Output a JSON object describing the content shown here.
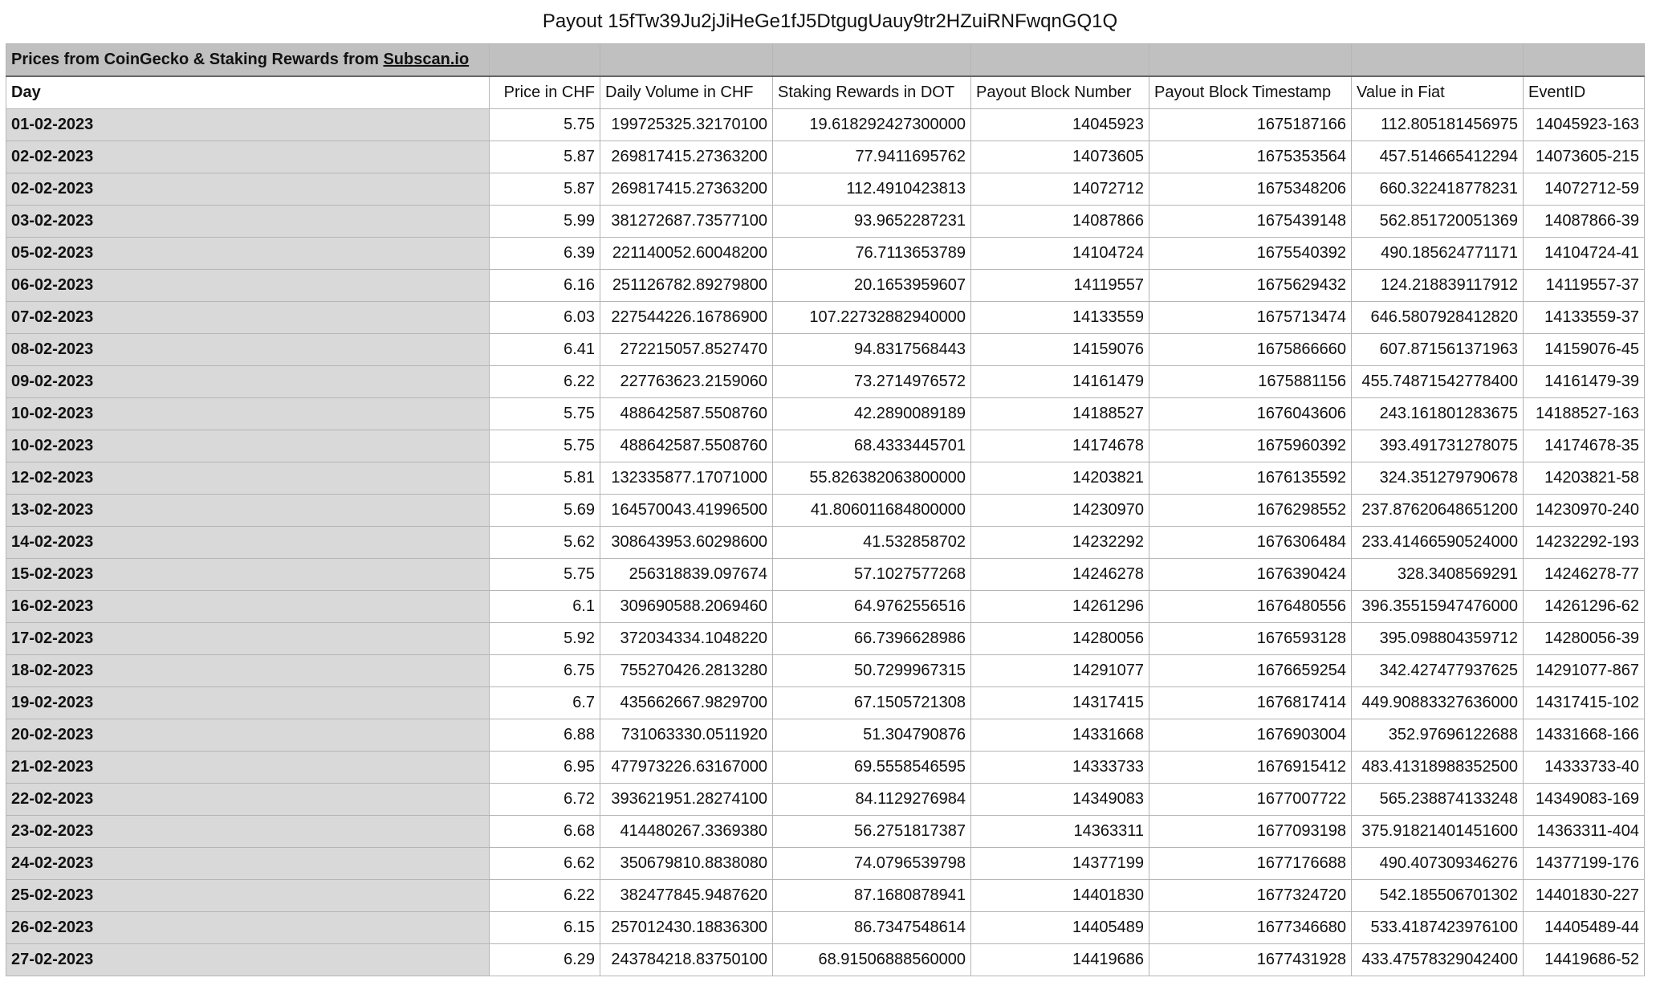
{
  "title": "Payout 15fTw39Ju2jJiHeGe1fJ5DtgugUauy9tr2HZuiRNFwqnGQ1Q",
  "source": {
    "prefix": "Prices from CoinGecko & Staking Rewards from ",
    "link": "Subscan.io"
  },
  "columns": [
    "Day",
    "Price in CHF",
    "Daily Volume in CHF",
    "Staking Rewards in DOT",
    "Payout Block Number",
    "Payout Block Timestamp",
    "Value in Fiat",
    "EventID"
  ],
  "rows": [
    [
      "01-02-2023",
      "5.75",
      "199725325.32170100",
      "19.618292427300000",
      "14045923",
      "1675187166",
      "112.805181456975",
      "14045923-163"
    ],
    [
      "02-02-2023",
      "5.87",
      "269817415.27363200",
      "77.9411695762",
      "14073605",
      "1675353564",
      "457.514665412294",
      "14073605-215"
    ],
    [
      "02-02-2023",
      "5.87",
      "269817415.27363200",
      "112.4910423813",
      "14072712",
      "1675348206",
      "660.322418778231",
      "14072712-59"
    ],
    [
      "03-02-2023",
      "5.99",
      "381272687.73577100",
      "93.9652287231",
      "14087866",
      "1675439148",
      "562.851720051369",
      "14087866-39"
    ],
    [
      "05-02-2023",
      "6.39",
      "221140052.60048200",
      "76.7113653789",
      "14104724",
      "1675540392",
      "490.185624771171",
      "14104724-41"
    ],
    [
      "06-02-2023",
      "6.16",
      "251126782.89279800",
      "20.1653959607",
      "14119557",
      "1675629432",
      "124.218839117912",
      "14119557-37"
    ],
    [
      "07-02-2023",
      "6.03",
      "227544226.16786900",
      "107.22732882940000",
      "14133559",
      "1675713474",
      "646.5807928412820",
      "14133559-37"
    ],
    [
      "08-02-2023",
      "6.41",
      "272215057.8527470",
      "94.8317568443",
      "14159076",
      "1675866660",
      "607.871561371963",
      "14159076-45"
    ],
    [
      "09-02-2023",
      "6.22",
      "227763623.2159060",
      "73.2714976572",
      "14161479",
      "1675881156",
      "455.74871542778400",
      "14161479-39"
    ],
    [
      "10-02-2023",
      "5.75",
      "488642587.5508760",
      "42.2890089189",
      "14188527",
      "1676043606",
      "243.161801283675",
      "14188527-163"
    ],
    [
      "10-02-2023",
      "5.75",
      "488642587.5508760",
      "68.4333445701",
      "14174678",
      "1675960392",
      "393.491731278075",
      "14174678-35"
    ],
    [
      "12-02-2023",
      "5.81",
      "132335877.17071000",
      "55.826382063800000",
      "14203821",
      "1676135592",
      "324.351279790678",
      "14203821-58"
    ],
    [
      "13-02-2023",
      "5.69",
      "164570043.41996500",
      "41.806011684800000",
      "14230970",
      "1676298552",
      "237.87620648651200",
      "14230970-240"
    ],
    [
      "14-02-2023",
      "5.62",
      "308643953.60298600",
      "41.532858702",
      "14232292",
      "1676306484",
      "233.41466590524000",
      "14232292-193"
    ],
    [
      "15-02-2023",
      "5.75",
      "256318839.097674",
      "57.1027577268",
      "14246278",
      "1676390424",
      "328.3408569291",
      "14246278-77"
    ],
    [
      "16-02-2023",
      "6.1",
      "309690588.2069460",
      "64.9762556516",
      "14261296",
      "1676480556",
      "396.35515947476000",
      "14261296-62"
    ],
    [
      "17-02-2023",
      "5.92",
      "372034334.1048220",
      "66.7396628986",
      "14280056",
      "1676593128",
      "395.098804359712",
      "14280056-39"
    ],
    [
      "18-02-2023",
      "6.75",
      "755270426.2813280",
      "50.7299967315",
      "14291077",
      "1676659254",
      "342.427477937625",
      "14291077-867"
    ],
    [
      "19-02-2023",
      "6.7",
      "435662667.9829700",
      "67.1505721308",
      "14317415",
      "1676817414",
      "449.90883327636000",
      "14317415-102"
    ],
    [
      "20-02-2023",
      "6.88",
      "731063330.0511920",
      "51.304790876",
      "14331668",
      "1676903004",
      "352.97696122688",
      "14331668-166"
    ],
    [
      "21-02-2023",
      "6.95",
      "477973226.63167000",
      "69.5558546595",
      "14333733",
      "1676915412",
      "483.41318988352500",
      "14333733-40"
    ],
    [
      "22-02-2023",
      "6.72",
      "393621951.28274100",
      "84.1129276984",
      "14349083",
      "1677007722",
      "565.238874133248",
      "14349083-169"
    ],
    [
      "23-02-2023",
      "6.68",
      "414480267.3369380",
      "56.2751817387",
      "14363311",
      "1677093198",
      "375.91821401451600",
      "14363311-404"
    ],
    [
      "24-02-2023",
      "6.62",
      "350679810.8838080",
      "74.0796539798",
      "14377199",
      "1677176688",
      "490.407309346276",
      "14377199-176"
    ],
    [
      "25-02-2023",
      "6.22",
      "382477845.9487620",
      "87.1680878941",
      "14401830",
      "1677324720",
      "542.185506701302",
      "14401830-227"
    ],
    [
      "26-02-2023",
      "6.15",
      "257012430.18836300",
      "86.7347548614",
      "14405489",
      "1677346680",
      "533.4187423976100",
      "14405489-44"
    ],
    [
      "27-02-2023",
      "6.29",
      "243784218.83750100",
      "68.91506888560000",
      "14419686",
      "1677431928",
      "433.47578329042400",
      "14419686-52"
    ]
  ]
}
